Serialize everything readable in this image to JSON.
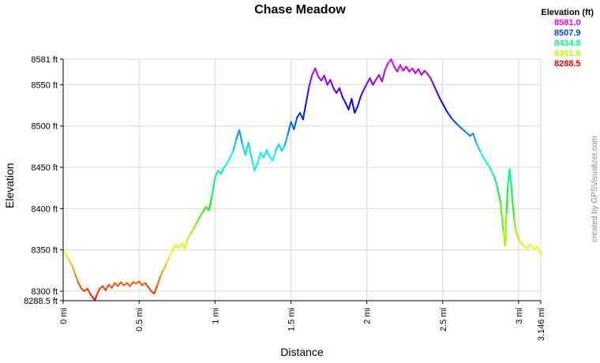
{
  "title": "Chase Meadow",
  "legend": {
    "title": "Elevation (ft)",
    "items": [
      {
        "label": "8581.0",
        "color": "#FF00FF"
      },
      {
        "label": "8507.9",
        "color": "#0040FF"
      },
      {
        "label": "8434.8",
        "color": "#00FF80"
      },
      {
        "label": "8361.6",
        "color": "#BFFF00"
      },
      {
        "label": "8288.5",
        "color": "#FF0000"
      }
    ]
  },
  "watermark": "created by GPSVisualizer.com",
  "chart_data": {
    "type": "line",
    "title": "Chase Meadow",
    "xlabel": "Distance",
    "ylabel": "Elevation",
    "x_unit": "mi",
    "y_unit": "ft",
    "xlim": [
      0,
      3.146
    ],
    "ylim": [
      8288.5,
      8581
    ],
    "grid": true,
    "legend_position": "top-right",
    "colors": {
      "grid": "#d8d8d8",
      "axis": "#000000"
    },
    "color_scale": {
      "min": 8288.5,
      "max": 8581,
      "hue_min": 0,
      "hue_max": 300
    },
    "y_ticks": [
      {
        "value": 8581,
        "label": "8581 ft"
      },
      {
        "value": 8550,
        "label": "8550 ft"
      },
      {
        "value": 8500,
        "label": "8500 ft"
      },
      {
        "value": 8450,
        "label": "8450 ft"
      },
      {
        "value": 8400,
        "label": "8400 ft"
      },
      {
        "value": 8350,
        "label": "8350 ft"
      },
      {
        "value": 8300,
        "label": "8300 ft"
      },
      {
        "value": 8288.5,
        "label": "8288.5 ft"
      }
    ],
    "x_ticks": [
      {
        "value": 0,
        "label": "0 mi"
      },
      {
        "value": 0.5,
        "label": "0.5 mi"
      },
      {
        "value": 1,
        "label": "1 mi"
      },
      {
        "value": 1.5,
        "label": "1.5 mi"
      },
      {
        "value": 2,
        "label": "2 mi"
      },
      {
        "value": 2.5,
        "label": "2.5 mi"
      },
      {
        "value": 3,
        "label": "3 mi"
      },
      {
        "value": 3.146,
        "label": "3.146 mi"
      }
    ],
    "points": [
      [
        0.0,
        8350
      ],
      [
        0.02,
        8343
      ],
      [
        0.04,
        8337
      ],
      [
        0.06,
        8330
      ],
      [
        0.08,
        8320
      ],
      [
        0.1,
        8310
      ],
      [
        0.12,
        8303
      ],
      [
        0.14,
        8300
      ],
      [
        0.16,
        8303
      ],
      [
        0.18,
        8296
      ],
      [
        0.2,
        8291
      ],
      [
        0.21,
        8289
      ],
      [
        0.22,
        8295
      ],
      [
        0.24,
        8303
      ],
      [
        0.26,
        8306
      ],
      [
        0.28,
        8301
      ],
      [
        0.3,
        8308
      ],
      [
        0.32,
        8304
      ],
      [
        0.34,
        8310
      ],
      [
        0.36,
        8306
      ],
      [
        0.38,
        8311
      ],
      [
        0.4,
        8307
      ],
      [
        0.42,
        8310
      ],
      [
        0.44,
        8306
      ],
      [
        0.46,
        8311
      ],
      [
        0.48,
        8309
      ],
      [
        0.5,
        8312
      ],
      [
        0.52,
        8307
      ],
      [
        0.54,
        8310
      ],
      [
        0.56,
        8305
      ],
      [
        0.58,
        8300
      ],
      [
        0.6,
        8297
      ],
      [
        0.62,
        8307
      ],
      [
        0.64,
        8318
      ],
      [
        0.66,
        8326
      ],
      [
        0.68,
        8333
      ],
      [
        0.7,
        8342
      ],
      [
        0.72,
        8350
      ],
      [
        0.74,
        8356
      ],
      [
        0.76,
        8352
      ],
      [
        0.78,
        8358
      ],
      [
        0.8,
        8352
      ],
      [
        0.82,
        8364
      ],
      [
        0.84,
        8370
      ],
      [
        0.86,
        8376
      ],
      [
        0.88,
        8383
      ],
      [
        0.9,
        8390
      ],
      [
        0.92,
        8396
      ],
      [
        0.94,
        8402
      ],
      [
        0.96,
        8398
      ],
      [
        0.98,
        8415
      ],
      [
        1.0,
        8438
      ],
      [
        1.02,
        8446
      ],
      [
        1.04,
        8442
      ],
      [
        1.06,
        8450
      ],
      [
        1.08,
        8455
      ],
      [
        1.1,
        8462
      ],
      [
        1.12,
        8470
      ],
      [
        1.14,
        8484
      ],
      [
        1.16,
        8495
      ],
      [
        1.18,
        8478
      ],
      [
        1.2,
        8465
      ],
      [
        1.22,
        8480
      ],
      [
        1.24,
        8462
      ],
      [
        1.26,
        8446
      ],
      [
        1.28,
        8455
      ],
      [
        1.3,
        8468
      ],
      [
        1.32,
        8462
      ],
      [
        1.34,
        8471
      ],
      [
        1.36,
        8463
      ],
      [
        1.38,
        8458
      ],
      [
        1.4,
        8470
      ],
      [
        1.42,
        8478
      ],
      [
        1.44,
        8470
      ],
      [
        1.46,
        8477
      ],
      [
        1.48,
        8490
      ],
      [
        1.5,
        8505
      ],
      [
        1.52,
        8496
      ],
      [
        1.54,
        8510
      ],
      [
        1.56,
        8516
      ],
      [
        1.58,
        8508
      ],
      [
        1.6,
        8528
      ],
      [
        1.62,
        8548
      ],
      [
        1.64,
        8562
      ],
      [
        1.66,
        8570
      ],
      [
        1.68,
        8560
      ],
      [
        1.7,
        8555
      ],
      [
        1.72,
        8561
      ],
      [
        1.74,
        8550
      ],
      [
        1.76,
        8556
      ],
      [
        1.78,
        8546
      ],
      [
        1.8,
        8540
      ],
      [
        1.82,
        8546
      ],
      [
        1.84,
        8535
      ],
      [
        1.86,
        8528
      ],
      [
        1.88,
        8520
      ],
      [
        1.9,
        8533
      ],
      [
        1.92,
        8516
      ],
      [
        1.94,
        8524
      ],
      [
        1.96,
        8536
      ],
      [
        1.98,
        8544
      ],
      [
        2.0,
        8551
      ],
      [
        2.02,
        8558
      ],
      [
        2.04,
        8550
      ],
      [
        2.06,
        8556
      ],
      [
        2.08,
        8562
      ],
      [
        2.1,
        8554
      ],
      [
        2.12,
        8568
      ],
      [
        2.14,
        8576
      ],
      [
        2.16,
        8581
      ],
      [
        2.18,
        8572
      ],
      [
        2.2,
        8566
      ],
      [
        2.22,
        8574
      ],
      [
        2.24,
        8567
      ],
      [
        2.26,
        8572
      ],
      [
        2.28,
        8566
      ],
      [
        2.3,
        8570
      ],
      [
        2.32,
        8564
      ],
      [
        2.34,
        8569
      ],
      [
        2.36,
        8562
      ],
      [
        2.38,
        8567
      ],
      [
        2.4,
        8563
      ],
      [
        2.42,
        8558
      ],
      [
        2.44,
        8550
      ],
      [
        2.46,
        8542
      ],
      [
        2.48,
        8534
      ],
      [
        2.5,
        8527
      ],
      [
        2.53,
        8517
      ],
      [
        2.56,
        8509
      ],
      [
        2.59,
        8503
      ],
      [
        2.62,
        8498
      ],
      [
        2.65,
        8493
      ],
      [
        2.68,
        8488
      ],
      [
        2.7,
        8491
      ],
      [
        2.72,
        8480
      ],
      [
        2.75,
        8468
      ],
      [
        2.78,
        8458
      ],
      [
        2.81,
        8450
      ],
      [
        2.84,
        8438
      ],
      [
        2.86,
        8425
      ],
      [
        2.88,
        8408
      ],
      [
        2.9,
        8372
      ],
      [
        2.91,
        8355
      ],
      [
        2.92,
        8395
      ],
      [
        2.93,
        8430
      ],
      [
        2.94,
        8448
      ],
      [
        2.95,
        8430
      ],
      [
        2.96,
        8408
      ],
      [
        2.97,
        8388
      ],
      [
        2.98,
        8374
      ],
      [
        3.0,
        8363
      ],
      [
        3.02,
        8357
      ],
      [
        3.05,
        8352
      ],
      [
        3.08,
        8356
      ],
      [
        3.1,
        8351
      ],
      [
        3.12,
        8354
      ],
      [
        3.146,
        8344
      ]
    ]
  }
}
